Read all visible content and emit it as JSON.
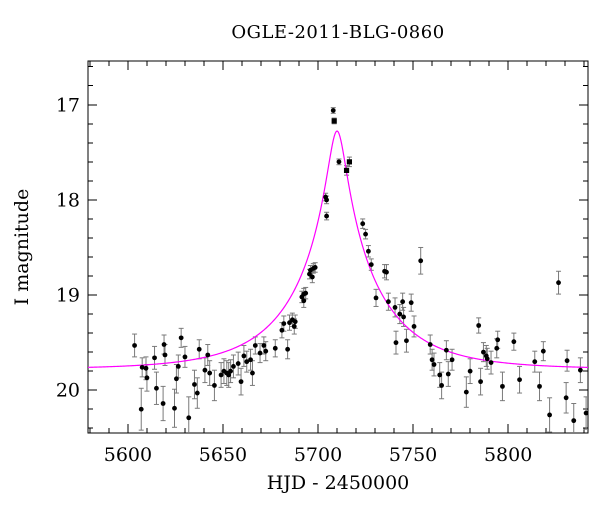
{
  "chart_data": {
    "type": "scatter",
    "title": "OGLE-2011-BLG-0860",
    "xlabel": "HJD - 2450000",
    "ylabel": "I magnitude",
    "xlim": [
      5579,
      5842
    ],
    "ylim": [
      20.45,
      16.54
    ],
    "y_axis_inverted": true,
    "grid": false,
    "legend": false,
    "x_major_ticks": [
      5600,
      5650,
      5700,
      5750,
      5800
    ],
    "x_minor_step": 10,
    "y_major_ticks": [
      17,
      18,
      19,
      20
    ],
    "y_minor_step": 0.2,
    "colors": {
      "background": "#ffffff",
      "frame": "#000000",
      "text": "#000000",
      "points": "#000000",
      "errorbars": "#7a7a7a",
      "model_curve": "#ff00ff"
    },
    "model_curve": {
      "model": "paczynski-point-lens-magnification",
      "baseline_mag": 19.78,
      "peak_mag": 17.28,
      "t0": 5710,
      "tE_days": 45,
      "u0": 0.1
    },
    "series": [
      {
        "marker": "circle",
        "points_format": [
          "hjd_minus_2450000",
          "I_mag",
          "mag_error"
        ],
        "points": [
          [
            5603.5,
            19.53,
            0.12
          ],
          [
            5607,
            20.2,
            0.22
          ],
          [
            5607.5,
            19.76,
            0.1
          ],
          [
            5609.5,
            19.77,
            0.12
          ],
          [
            5610,
            19.87,
            0.14
          ],
          [
            5614,
            19.66,
            0.12
          ],
          [
            5615,
            19.98,
            0.17
          ],
          [
            5618.5,
            20.14,
            0.18
          ],
          [
            5619,
            19.52,
            0.1
          ],
          [
            5619.5,
            19.63,
            0.11
          ],
          [
            5624.5,
            20.19,
            0.2
          ],
          [
            5625.5,
            19.88,
            0.15
          ],
          [
            5626.5,
            19.75,
            0.12
          ],
          [
            5628,
            19.45,
            0.1
          ],
          [
            5630,
            19.65,
            0.11
          ],
          [
            5632,
            20.29,
            0.22
          ],
          [
            5635,
            19.94,
            0.15
          ],
          [
            5636.5,
            20.03,
            0.16
          ],
          [
            5637.5,
            19.57,
            0.1
          ],
          [
            5640.5,
            19.79,
            0.13
          ],
          [
            5642,
            19.63,
            0.11
          ],
          [
            5643,
            19.82,
            0.13
          ],
          [
            5645.5,
            19.95,
            0.16
          ],
          [
            5649,
            19.84,
            0.13
          ],
          [
            5650.5,
            19.8,
            0.13
          ],
          [
            5652,
            19.82,
            0.13
          ],
          [
            5653,
            19.84,
            0.13
          ],
          [
            5654,
            19.8,
            0.12
          ],
          [
            5655.5,
            19.75,
            0.12
          ],
          [
            5658,
            19.72,
            0.12
          ],
          [
            5659.5,
            19.91,
            0.14
          ],
          [
            5661,
            19.64,
            0.11
          ],
          [
            5662.5,
            19.7,
            0.11
          ],
          [
            5664.5,
            19.68,
            0.11
          ],
          [
            5665.5,
            19.82,
            0.13
          ],
          [
            5667,
            19.53,
            0.09
          ],
          [
            5669.5,
            19.61,
            0.1
          ],
          [
            5671.5,
            19.53,
            0.09
          ],
          [
            5672.5,
            19.59,
            0.1
          ],
          [
            5677.5,
            19.56,
            0.09
          ],
          [
            5681,
            19.37,
            0.08
          ],
          [
            5682,
            19.3,
            0.08
          ],
          [
            5684,
            19.57,
            0.1
          ],
          [
            5685,
            19.29,
            0.08
          ],
          [
            5686.5,
            19.26,
            0.07
          ],
          [
            5687.5,
            19.33,
            0.08
          ],
          [
            5688,
            19.28,
            0.07
          ],
          [
            5691.5,
            19.02,
            0.06
          ],
          [
            5692.5,
            19.06,
            0.07
          ],
          [
            5692.5,
            18.99,
            0.06
          ],
          [
            5693.5,
            18.98,
            0.06
          ],
          [
            5695.5,
            18.78,
            0.05
          ],
          [
            5696,
            18.74,
            0.05
          ],
          [
            5697,
            18.81,
            0.06
          ],
          [
            5697.5,
            18.72,
            0.05
          ],
          [
            5698.5,
            18.71,
            0.05
          ],
          [
            5704,
            17.97,
            0.04
          ],
          [
            5704.5,
            18.0,
            0.04
          ],
          [
            5704.5,
            18.17,
            0.04
          ],
          [
            5708,
            17.06,
            0.03
          ],
          [
            5711,
            17.6,
            0.03
          ],
          [
            5723.5,
            18.25,
            0.05
          ],
          [
            5725,
            18.36,
            0.05
          ],
          [
            5726.5,
            18.54,
            0.06
          ],
          [
            5728,
            18.68,
            0.06
          ],
          [
            5730.5,
            19.03,
            0.09
          ],
          [
            5735,
            18.75,
            0.07
          ],
          [
            5736,
            18.76,
            0.08
          ],
          [
            5737,
            19.07,
            0.09
          ],
          [
            5740.5,
            19.13,
            0.1
          ],
          [
            5741,
            19.5,
            0.12
          ],
          [
            5743,
            19.2,
            0.1
          ],
          [
            5744.5,
            19.07,
            0.09
          ],
          [
            5745,
            19.23,
            0.1
          ],
          [
            5746.5,
            19.48,
            0.12
          ],
          [
            5749,
            19.08,
            0.09
          ],
          [
            5750.5,
            19.33,
            0.11
          ],
          [
            5754,
            18.64,
            0.14
          ],
          [
            5759,
            19.52,
            0.1
          ],
          [
            5760,
            19.68,
            0.11
          ],
          [
            5761,
            19.73,
            0.12
          ],
          [
            5764,
            19.84,
            0.13
          ],
          [
            5765,
            19.95,
            0.14
          ],
          [
            5767.5,
            19.58,
            0.1
          ],
          [
            5768.5,
            19.83,
            0.13
          ],
          [
            5770.5,
            19.68,
            0.11
          ],
          [
            5778,
            20.02,
            0.16
          ],
          [
            5780,
            19.8,
            0.13
          ],
          [
            5784.5,
            19.32,
            0.08
          ],
          [
            5785.5,
            19.91,
            0.14
          ],
          [
            5787,
            19.6,
            0.1
          ],
          [
            5788.5,
            19.64,
            0.11
          ],
          [
            5789,
            19.67,
            0.11
          ],
          [
            5791,
            19.71,
            0.12
          ],
          [
            5794,
            19.56,
            0.1
          ],
          [
            5794.5,
            19.47,
            0.09
          ],
          [
            5797,
            19.96,
            0.15
          ],
          [
            5803,
            19.49,
            0.09
          ],
          [
            5806,
            19.89,
            0.14
          ],
          [
            5814,
            19.7,
            0.11
          ],
          [
            5816.5,
            19.96,
            0.15
          ],
          [
            5818.5,
            19.59,
            0.1
          ],
          [
            5821.8,
            20.26,
            0.18
          ],
          [
            5826.5,
            18.87,
            0.12
          ],
          [
            5830.5,
            20.08,
            0.16
          ],
          [
            5831,
            19.69,
            0.11
          ],
          [
            5834.5,
            20.32,
            0.18
          ],
          [
            5838,
            19.79,
            0.13
          ],
          [
            5841,
            20.24,
            0.17
          ]
        ]
      },
      {
        "marker": "square",
        "points_format": [
          "hjd_minus_2450000",
          "I_mag",
          "mag_error"
        ],
        "points": [
          [
            5708.5,
            17.17,
            0.03
          ],
          [
            5715,
            17.69,
            0.05
          ],
          [
            5716.5,
            17.6,
            0.05
          ]
        ]
      }
    ]
  }
}
